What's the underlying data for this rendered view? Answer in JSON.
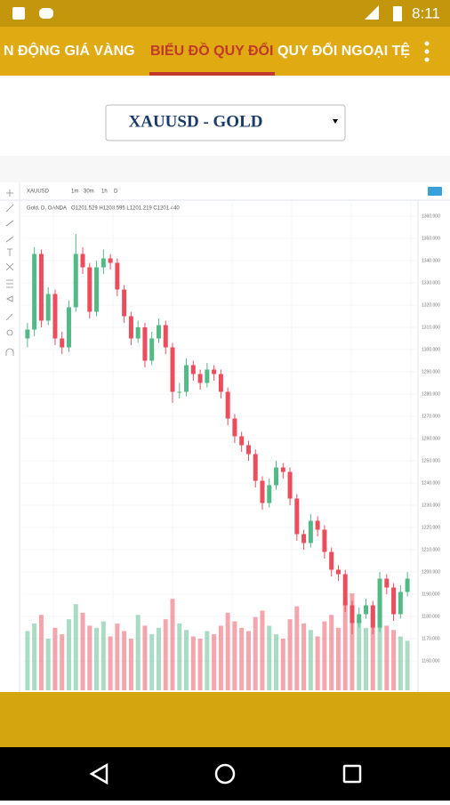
{
  "status_bar": {
    "time": "8:11"
  },
  "tabs": [
    "N ĐỘNG GIÁ VÀNG",
    "BIỂU ĐỒ QUY ĐỔI",
    "QUY ĐỔI NGOẠI TỆ"
  ],
  "active_tab": 1,
  "dropdown": {
    "selected": "XAUUSD - GOLD"
  },
  "toolbar": {
    "symbol": "XAUUSD",
    "intervals": [
      "1m",
      "30m",
      "1h",
      "D"
    ]
  },
  "chart_data": {
    "type": "candlestick",
    "title": "Gold, D, OANDA",
    "legend_values": "O1201.529 H1208.595 L1201.219 C1201.440",
    "up_color": "#53b987",
    "down_color": "#eb4d5c",
    "open": [
      1305,
      1309,
      1343,
      1313,
      1325,
      1305,
      1301,
      1319,
      1343,
      1337,
      1317,
      1337,
      1341,
      1339,
      1327,
      1315,
      1305,
      1310,
      1295,
      1305,
      1311,
      1301,
      1281,
      1281,
      1293,
      1289,
      1285,
      1291,
      1289,
      1281,
      1269,
      1261,
      1257,
      1253,
      1241,
      1231,
      1239,
      1247,
      1245,
      1233,
      1217,
      1213,
      1223,
      1219,
      1209,
      1201,
      1199,
      1185,
      1177,
      1181,
      1185,
      1175,
      1197,
      1193,
      1181,
      1191
    ],
    "high": [
      1312,
      1346,
      1345,
      1328,
      1327,
      1308,
      1322,
      1352,
      1346,
      1339,
      1340,
      1345,
      1343,
      1341,
      1329,
      1317,
      1313,
      1312,
      1308,
      1314,
      1313,
      1303,
      1285,
      1296,
      1295,
      1291,
      1294,
      1293,
      1291,
      1283,
      1271,
      1263,
      1259,
      1255,
      1243,
      1242,
      1250,
      1249,
      1247,
      1235,
      1219,
      1226,
      1225,
      1221,
      1211,
      1203,
      1201,
      1187,
      1184,
      1188,
      1187,
      1200,
      1199,
      1195,
      1194,
      1200
    ],
    "low": [
      1301,
      1306,
      1310,
      1311,
      1302,
      1298,
      1299,
      1317,
      1334,
      1314,
      1315,
      1334,
      1336,
      1324,
      1312,
      1302,
      1303,
      1292,
      1293,
      1303,
      1298,
      1276,
      1278,
      1279,
      1286,
      1282,
      1283,
      1286,
      1278,
      1266,
      1258,
      1254,
      1250,
      1238,
      1228,
      1229,
      1237,
      1242,
      1230,
      1214,
      1210,
      1211,
      1216,
      1206,
      1198,
      1196,
      1182,
      1172,
      1175,
      1179,
      1172,
      1173,
      1190,
      1178,
      1179,
      1189
    ],
    "close": [
      1309,
      1343,
      1313,
      1325,
      1305,
      1301,
      1319,
      1343,
      1337,
      1317,
      1337,
      1341,
      1339,
      1327,
      1315,
      1305,
      1310,
      1295,
      1305,
      1311,
      1301,
      1281,
      1281,
      1293,
      1289,
      1285,
      1291,
      1289,
      1281,
      1269,
      1261,
      1257,
      1253,
      1241,
      1231,
      1239,
      1247,
      1245,
      1233,
      1217,
      1213,
      1223,
      1219,
      1209,
      1201,
      1199,
      1185,
      1177,
      1181,
      1185,
      1175,
      1197,
      1193,
      1181,
      1191,
      1197
    ],
    "volume": [
      55,
      62,
      70,
      48,
      58,
      52,
      66,
      80,
      72,
      60,
      58,
      64,
      50,
      62,
      55,
      48,
      70,
      60,
      52,
      58,
      66,
      85,
      62,
      56,
      50,
      48,
      55,
      52,
      60,
      72,
      64,
      58,
      55,
      68,
      74,
      60,
      52,
      48,
      66,
      78,
      62,
      56,
      50,
      64,
      70,
      58,
      82,
      90,
      66,
      58,
      72,
      88,
      60,
      56,
      50,
      46
    ],
    "volume_ylim": [
      0,
      100
    ],
    "ylim": [
      1148,
      1364
    ],
    "yticks": [
      {
        "value": 1360,
        "label": "1360.000"
      },
      {
        "value": 1350,
        "label": "1350.000"
      },
      {
        "value": 1340,
        "label": "1340.000"
      },
      {
        "value": 1330,
        "label": "1330.000"
      },
      {
        "value": 1320,
        "label": "1320.000"
      },
      {
        "value": 1310,
        "label": "1310.000"
      },
      {
        "value": 1300,
        "label": "1300.000"
      },
      {
        "value": 1290,
        "label": "1290.000"
      },
      {
        "value": 1280,
        "label": "1280.000"
      },
      {
        "value": 1270,
        "label": "1270.000"
      },
      {
        "value": 1260,
        "label": "1260.000"
      },
      {
        "value": 1250,
        "label": "1250.000"
      },
      {
        "value": 1240,
        "label": "1240.000"
      },
      {
        "value": 1230,
        "label": "1230.000"
      },
      {
        "value": 1220,
        "label": "1220.000"
      },
      {
        "value": 1210,
        "label": "1210.000"
      },
      {
        "value": 1200,
        "label": "1200.000"
      },
      {
        "value": 1190,
        "label": "1190.000"
      },
      {
        "value": 1180,
        "label": "1180.000"
      },
      {
        "value": 1170,
        "label": "1170.000"
      },
      {
        "value": 1160,
        "label": "1160.000"
      }
    ],
    "grid": true
  }
}
